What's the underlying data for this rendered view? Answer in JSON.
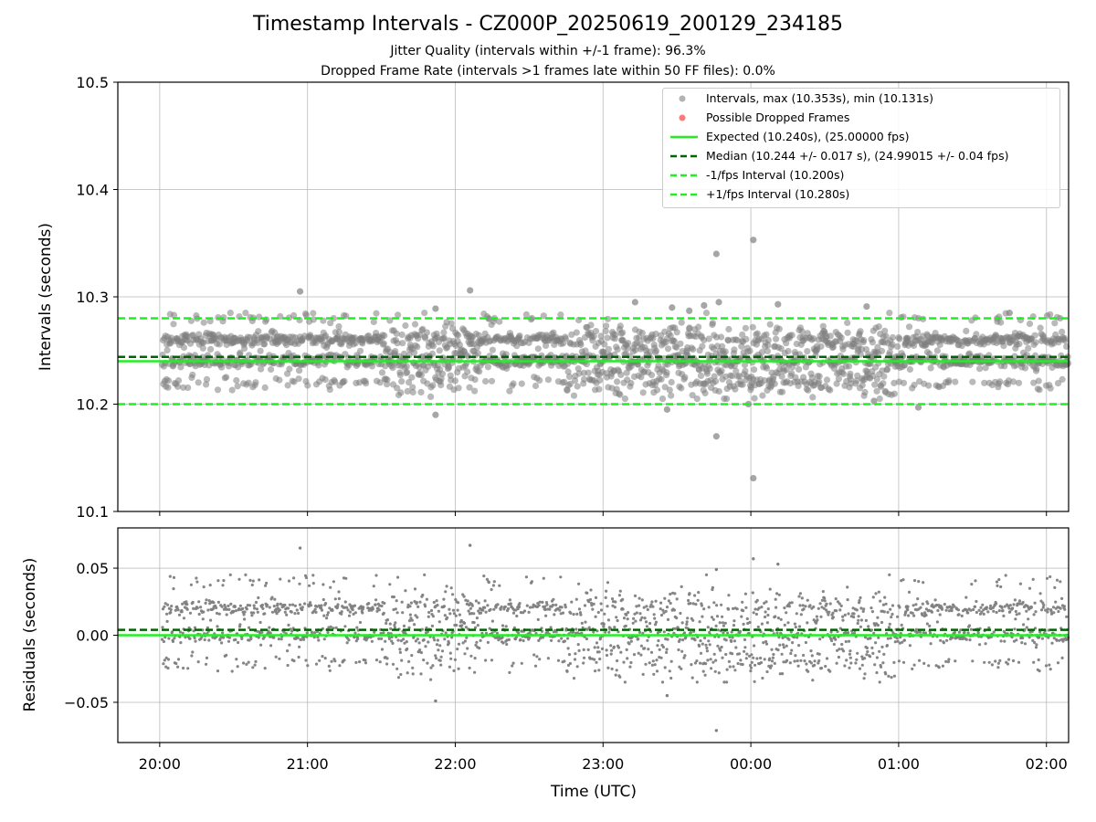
{
  "title": "Timestamp Intervals - CZ000P_20250619_200129_234185",
  "subtitle_line1": "Jitter Quality (intervals within +/-1 frame): 96.3%",
  "subtitle_line2": "Dropped Frame Rate (intervals >1 frames late within 50 FF files): 0.0%",
  "colors": {
    "points": "#808080",
    "dropped": "#ff4040",
    "expected": "#22ee22",
    "median": "#006400",
    "limits": "#22ee22",
    "grid": "#b0b0b0"
  },
  "chart_data": [
    {
      "type": "scatter",
      "ylabel": "Intervals (seconds)",
      "ylim": [
        10.1,
        10.5
      ],
      "yticks": [
        10.1,
        10.2,
        10.3,
        10.4,
        10.5
      ],
      "ytick_labels": [
        "10.1",
        "10.2",
        "10.3",
        "10.4",
        "10.5"
      ],
      "xlim": [
        "19:43",
        "02:09"
      ],
      "grid": true,
      "legend_position": "top-right",
      "series": [
        {
          "name": "Intervals, max (10.353s), min (10.131s)",
          "kind": "scatter",
          "color": "#808080",
          "description_of_distribution": "main band 10.215-10.280",
          "points": [
            [
              "20:57",
              10.305
            ],
            [
              "21:52",
              10.289
            ],
            [
              "22:06",
              10.306
            ],
            [
              "23:13",
              10.295
            ],
            [
              "23:28",
              10.29
            ],
            [
              "23:35",
              10.287
            ],
            [
              "23:41",
              10.292
            ],
            [
              "23:47",
              10.295
            ],
            [
              "23:46",
              10.34
            ],
            [
              "00:01",
              10.353
            ],
            [
              "00:01",
              10.131
            ],
            [
              "23:46",
              10.17
            ],
            [
              "21:52",
              10.19
            ],
            [
              "23:26",
              10.195
            ],
            [
              "23:59",
              10.2
            ],
            [
              "00:11",
              10.293
            ],
            [
              "00:47",
              10.291
            ],
            [
              "00:50",
              10.203
            ],
            [
              "01:08",
              10.197
            ],
            [
              "01:45",
              10.285
            ]
          ]
        },
        {
          "name": "Possible Dropped Frames",
          "kind": "scatter",
          "color": "#ff4040",
          "points": []
        },
        {
          "name": "Expected (10.240s), (25.00000 fps)",
          "kind": "hline",
          "value": 10.24,
          "style": "solid",
          "color": "#22ee22"
        },
        {
          "name": "Median (10.244 +/- 0.017 s), (24.99015 +/- 0.04 fps)",
          "kind": "hline",
          "value": 10.244,
          "style": "dashed",
          "color": "#006400"
        },
        {
          "name": "-1/fps Interval (10.200s)",
          "kind": "hline",
          "value": 10.2,
          "style": "dashed",
          "color": "#22ee22"
        },
        {
          "name": "+1/fps Interval (10.280s)",
          "kind": "hline",
          "value": 10.28,
          "style": "dashed",
          "color": "#22ee22"
        }
      ]
    },
    {
      "type": "scatter",
      "ylabel": "Residuals (seconds)",
      "xlabel": "Time (UTC)",
      "ylim": [
        -0.08,
        0.08
      ],
      "yticks": [
        -0.05,
        0.0,
        0.05
      ],
      "ytick_labels": [
        "−0.05",
        "0.00",
        "0.05"
      ],
      "xticks": [
        "20:00",
        "21:00",
        "22:00",
        "23:00",
        "00:00",
        "01:00",
        "02:00"
      ],
      "grid": true,
      "series": [
        {
          "kind": "scatter",
          "color": "#808080",
          "points": [
            [
              "20:57",
              0.065
            ],
            [
              "22:06",
              0.067
            ],
            [
              "21:52",
              -0.049
            ],
            [
              "23:26",
              -0.045
            ],
            [
              "23:46",
              -0.071
            ],
            [
              "00:01",
              0.057
            ],
            [
              "23:46",
              0.049
            ],
            [
              "00:11",
              0.053
            ]
          ]
        },
        {
          "kind": "hline",
          "value": 0.0,
          "style": "solid",
          "color": "#22ee22"
        },
        {
          "kind": "hline",
          "value": 0.004,
          "style": "dashed",
          "color": "#006400"
        }
      ]
    }
  ]
}
